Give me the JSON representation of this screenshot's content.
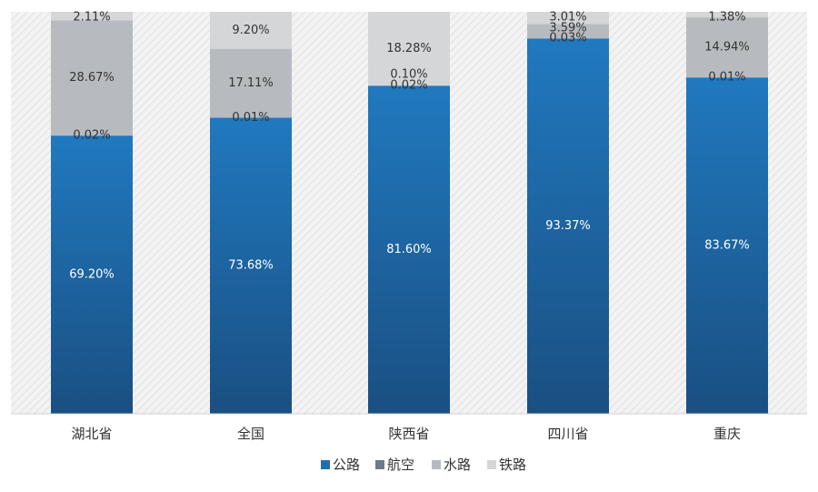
{
  "chart_data": {
    "type": "bar",
    "stacked": true,
    "normalized": true,
    "categories": [
      "湖北省",
      "全国",
      "陕西省",
      "四川省",
      "重庆"
    ],
    "series": [
      {
        "name": "公路",
        "values": [
          69.2,
          73.68,
          81.6,
          93.37,
          83.67
        ],
        "labels": [
          "69.20%",
          "73.68%",
          "81.60%",
          "93.37%",
          "83.67%"
        ]
      },
      {
        "name": "航空",
        "values": [
          0.02,
          0.01,
          0.02,
          0.03,
          0.01
        ],
        "labels": [
          "0.02%",
          "0.01%",
          "0.02%",
          "0.03%",
          "0.01%"
        ]
      },
      {
        "name": "水路",
        "values": [
          28.67,
          17.11,
          0.1,
          3.59,
          14.94
        ],
        "labels": [
          "28.67%",
          "17.11%",
          "0.10%",
          "3.59%",
          "14.94%"
        ]
      },
      {
        "name": "铁路",
        "values": [
          2.11,
          9.2,
          18.28,
          3.01,
          1.38
        ],
        "labels": [
          "2.11%",
          "9.20%",
          "18.28%",
          "3.01%",
          "1.38%"
        ]
      }
    ],
    "colors": {
      "公路": "#1f6fb0",
      "航空": "#6e7a87",
      "水路": "#b7bbc0",
      "铁路": "#d4d6d8"
    },
    "ylim": [
      0,
      100
    ],
    "grid": false,
    "legend": "bottom-center"
  }
}
